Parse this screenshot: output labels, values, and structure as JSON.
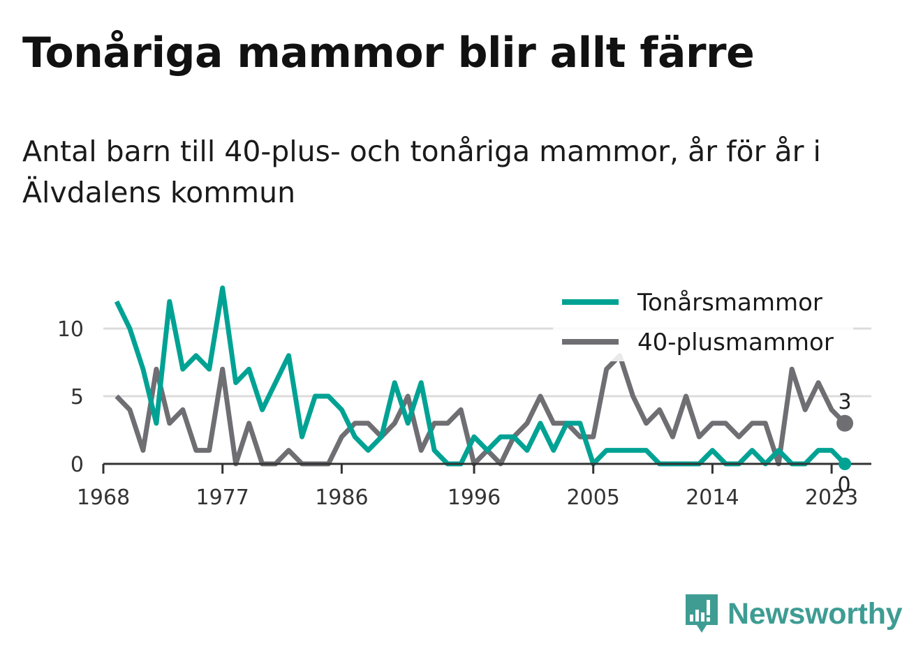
{
  "title": "Tonåriga mammor blir allt färre",
  "subtitle": "Antal barn till 40-plus- och tonåriga mammor, år för år i Älvdalens kommun",
  "brand": {
    "name": "Newsworthy",
    "icon": "newsworthy-logo-icon",
    "color": "#3e9c93"
  },
  "chart_data": {
    "type": "line",
    "x": [
      1969,
      1970,
      1971,
      1972,
      1973,
      1974,
      1975,
      1976,
      1977,
      1978,
      1979,
      1980,
      1981,
      1982,
      1983,
      1984,
      1985,
      1986,
      1987,
      1988,
      1989,
      1990,
      1991,
      1992,
      1993,
      1994,
      1995,
      1996,
      1997,
      1998,
      1999,
      2000,
      2001,
      2002,
      2003,
      2004,
      2005,
      2006,
      2007,
      2008,
      2009,
      2010,
      2011,
      2012,
      2013,
      2014,
      2015,
      2016,
      2017,
      2018,
      2019,
      2020,
      2021,
      2022,
      2023,
      2024
    ],
    "series": [
      {
        "name": "Tonårsmammor",
        "color": "#00a294",
        "values": [
          12,
          10,
          7,
          3,
          12,
          7,
          8,
          7,
          13,
          6,
          7,
          4,
          6,
          8,
          2,
          5,
          5,
          4,
          2,
          1,
          2,
          6,
          3,
          6,
          1,
          0,
          0,
          2,
          1,
          2,
          2,
          1,
          3,
          1,
          3,
          3,
          0,
          1,
          1,
          1,
          1,
          0,
          0,
          0,
          0,
          1,
          0,
          0,
          1,
          0,
          1,
          0,
          0,
          1,
          1,
          0
        ]
      },
      {
        "name": "40-plusmammor",
        "color": "#6e6e73",
        "values": [
          5,
          4,
          1,
          7,
          3,
          4,
          1,
          1,
          7,
          0,
          3,
          0,
          0,
          1,
          0,
          0,
          0,
          2,
          3,
          3,
          2,
          3,
          5,
          1,
          3,
          3,
          4,
          0,
          1,
          0,
          2,
          3,
          5,
          3,
          3,
          2,
          2,
          7,
          8,
          5,
          3,
          4,
          2,
          5,
          2,
          3,
          3,
          2,
          3,
          3,
          0,
          7,
          4,
          6,
          4,
          3
        ]
      }
    ],
    "x_ticks": [
      1968,
      1977,
      1986,
      1996,
      2005,
      2014,
      2023
    ],
    "y_ticks": [
      0,
      5,
      10
    ],
    "xlim": [
      1968,
      2026
    ],
    "ylim": [
      0,
      13
    ],
    "grid": "horizontal",
    "legend_position": "top-right",
    "end_labels": [
      {
        "series": "40-plusmammor",
        "value": "3"
      },
      {
        "series": "Tonårsmammor",
        "value": "0"
      }
    ]
  }
}
